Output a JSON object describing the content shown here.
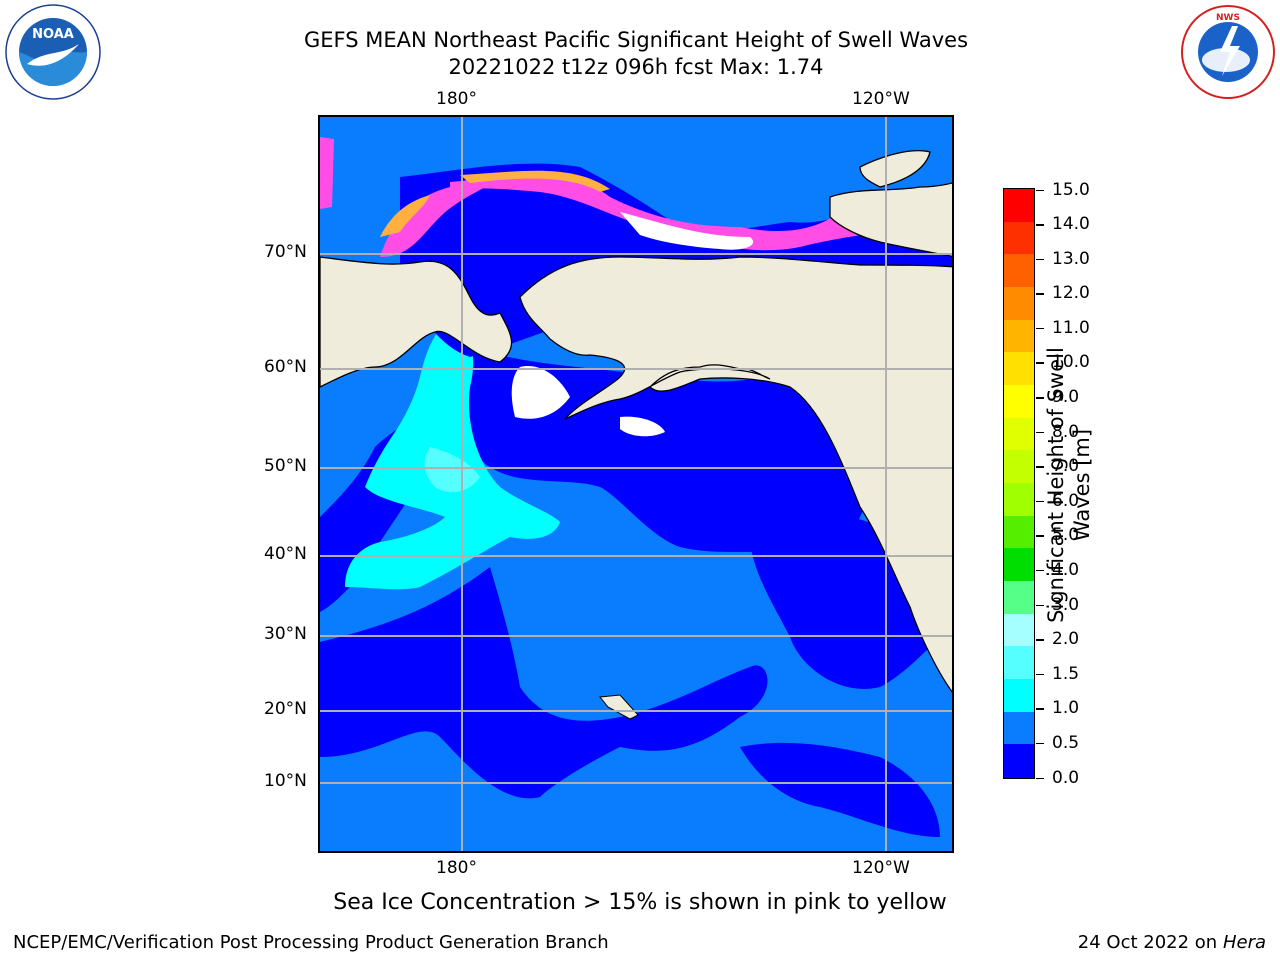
{
  "header": {
    "title_line1": "GEFS MEAN Northeast Pacific Significant Height of Swell Waves",
    "title_line2": "20221022 t12z 096h fcst   Max: 1.74"
  },
  "logos": {
    "left": "NOAA",
    "left_ring_text": "NATIONAL OCEANIC AND ATMOSPHERIC ADMINISTRATION • U.S. DEPARTMENT OF COMMERCE",
    "right_ring_text": "NATIONAL WEATHER SERVICE"
  },
  "map": {
    "lon_labels_top": [
      "180°",
      "120°W"
    ],
    "lon_labels_bottom": [
      "180°",
      "120°W"
    ],
    "lat_labels": [
      "70°N",
      "60°N",
      "50°N",
      "40°N",
      "30°N",
      "20°N",
      "10°N"
    ],
    "colors": {
      "land": "#efecdc",
      "ocean_low": "#0000ff",
      "ocean_mid": "#0a7dff",
      "swell_high": "#00ffff",
      "swell_mid": "#55ffff",
      "ice_pink": "#ff4de6",
      "ice_orange": "#ffb040",
      "grid": "#b0b0b0"
    }
  },
  "colorbar": {
    "title_line1": "Significant Height of Swell",
    "title_line2": "Waves [m]",
    "labels": [
      "15.0",
      "14.0",
      "13.0",
      "12.0",
      "11.0",
      "10.0",
      "9.0",
      "8.0",
      "7.0",
      "6.0",
      "5.0",
      "4.0",
      "3.0",
      "2.0",
      "1.5",
      "1.0",
      "0.5",
      "0.0"
    ],
    "segment_colors": [
      "#ff0000",
      "#ff3000",
      "#ff6000",
      "#ff8c00",
      "#ffb400",
      "#ffe000",
      "#ffff00",
      "#e0ff00",
      "#c4ff00",
      "#a0ff00",
      "#55ee00",
      "#00dd00",
      "#55ff88",
      "#a6ffff",
      "#55ffff",
      "#00ffff",
      "#0a7dff",
      "#0000ff"
    ]
  },
  "caption": "Sea Ice Concentration > 15% is shown in pink to yellow",
  "footer": {
    "left": "NCEP/EMC/Verification Post Processing Product Generation Branch",
    "right_prefix": "24 Oct 2022 on ",
    "right_italic": "Hera"
  }
}
